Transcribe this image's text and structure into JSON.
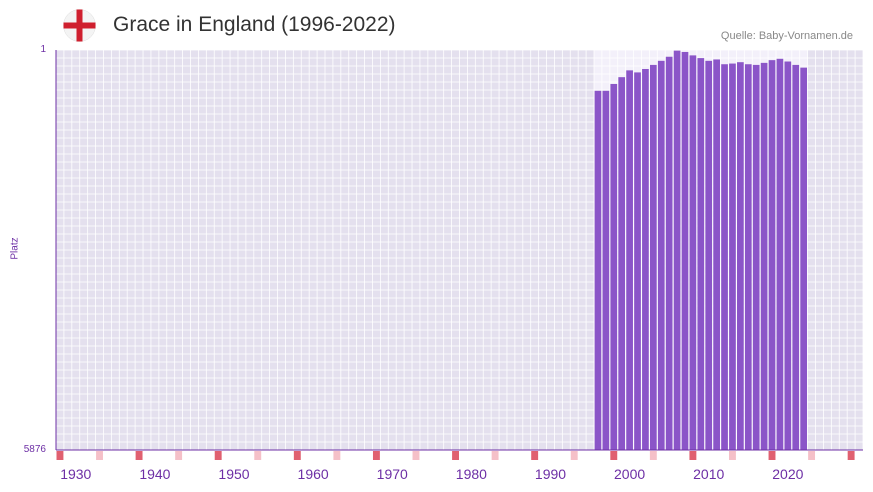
{
  "header": {
    "title": "Grace in England (1996-2022)",
    "source": "Quelle: Baby-Vornamen.de",
    "flag_icon": "england-flag-icon"
  },
  "colors": {
    "bar": "#8b55c8",
    "plot_bg": "#e4e0ee",
    "highlight_bg": "#f3f0fa",
    "marker_strong": "#e06070",
    "marker_light": "#f5c0c8",
    "axis": "#6d2fa5"
  },
  "chart_data": {
    "type": "bar",
    "title": "Grace in England (1996-2022)",
    "xlabel": "",
    "ylabel": "Platz",
    "ytick_labels": [
      "1",
      "5876"
    ],
    "ylim": [
      5876,
      1
    ],
    "xlim": [
      1928,
      2029
    ],
    "xtick_labels": [
      "1930",
      "1940",
      "1950",
      "1960",
      "1970",
      "1980",
      "1990",
      "2000",
      "2010",
      "2020"
    ],
    "x_ticks": [
      1930,
      1940,
      1950,
      1960,
      1970,
      1980,
      1990,
      2000,
      2010,
      2020
    ],
    "grid": true,
    "series": [
      {
        "name": "Platz",
        "x": [
          1996,
          1997,
          1998,
          1999,
          2000,
          2001,
          2002,
          2003,
          2004,
          2005,
          2006,
          2007,
          2008,
          2009,
          2010,
          2011,
          2012,
          2013,
          2014,
          2015,
          2016,
          2017,
          2018,
          2019,
          2020,
          2021,
          2022
        ],
        "values": [
          600,
          600,
          500,
          400,
          300,
          330,
          280,
          220,
          160,
          100,
          10,
          30,
          80,
          120,
          160,
          140,
          210,
          200,
          180,
          210,
          220,
          190,
          150,
          130,
          170,
          220,
          260
        ]
      }
    ],
    "markers": {
      "strong_years": [
        1928,
        1938,
        1948,
        1958,
        1968,
        1978,
        1988,
        1998,
        2008,
        2018,
        2028
      ],
      "light_years": [
        1933,
        1943,
        1953,
        1963,
        1973,
        1983,
        1993,
        2003,
        2013,
        2023
      ]
    }
  }
}
